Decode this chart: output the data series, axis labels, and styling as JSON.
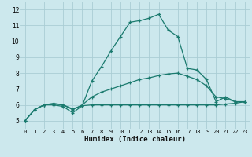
{
  "xlabel": "Humidex (Indice chaleur)",
  "bg_color": "#cce8ed",
  "grid_color": "#aacdd4",
  "line_color": "#1a7a6e",
  "xlim": [
    -0.5,
    23.5
  ],
  "ylim": [
    4.5,
    12.5
  ],
  "yticks": [
    5,
    6,
    7,
    8,
    9,
    10,
    11,
    12
  ],
  "xticks": [
    0,
    1,
    2,
    3,
    4,
    5,
    6,
    7,
    8,
    9,
    10,
    11,
    12,
    13,
    14,
    15,
    16,
    17,
    18,
    19,
    20,
    21,
    22,
    23
  ],
  "line1_x": [
    0,
    1,
    2,
    3,
    4,
    5,
    6,
    7,
    8,
    9,
    10,
    11,
    12,
    13,
    14,
    15,
    16,
    17,
    18,
    19,
    20,
    21,
    22,
    23
  ],
  "line1_y": [
    5.0,
    5.7,
    6.0,
    6.0,
    5.9,
    5.5,
    5.95,
    7.5,
    8.4,
    9.4,
    10.3,
    11.2,
    11.3,
    11.45,
    11.7,
    10.7,
    10.3,
    8.3,
    8.2,
    7.6,
    6.2,
    6.5,
    6.2,
    6.2
  ],
  "line2_x": [
    0,
    1,
    2,
    3,
    4,
    5,
    6,
    7,
    8,
    9,
    10,
    11,
    12,
    13,
    14,
    15,
    16,
    17,
    18,
    19,
    20,
    21,
    22,
    23
  ],
  "line2_y": [
    5.0,
    5.7,
    6.0,
    6.1,
    6.0,
    5.7,
    6.0,
    6.5,
    6.8,
    7.0,
    7.2,
    7.4,
    7.6,
    7.7,
    7.85,
    7.95,
    8.0,
    7.8,
    7.6,
    7.2,
    6.5,
    6.4,
    6.2,
    6.2
  ],
  "line3_x": [
    0,
    1,
    2,
    3,
    4,
    5,
    6,
    7,
    8,
    9,
    10,
    11,
    12,
    13,
    14,
    15,
    16,
    17,
    18,
    19,
    20,
    21,
    22,
    23
  ],
  "line3_y": [
    5.0,
    5.7,
    6.0,
    6.05,
    6.0,
    5.75,
    5.95,
    6.0,
    6.0,
    6.0,
    6.0,
    6.0,
    6.0,
    6.0,
    6.0,
    6.0,
    6.0,
    6.0,
    6.0,
    6.0,
    6.0,
    6.05,
    6.1,
    6.2
  ]
}
